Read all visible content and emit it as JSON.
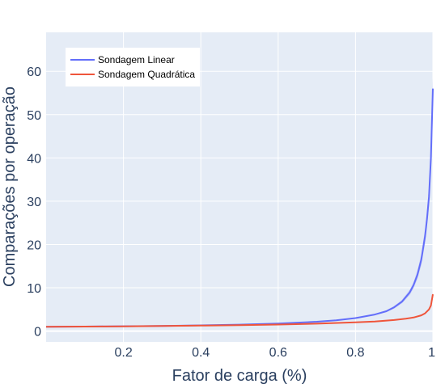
{
  "chart_data": {
    "type": "line",
    "title": "",
    "xlabel": "Fator de carga (%)",
    "ylabel": "Comparações por operação",
    "xlim": [
      0,
      1
    ],
    "ylim": [
      -2.5,
      69
    ],
    "x_ticks": [
      0.2,
      0.4,
      0.6,
      0.8,
      1
    ],
    "x_tick_labels": [
      "0.2",
      "0.4",
      "0.6",
      "0.8",
      "1"
    ],
    "y_ticks": [
      0,
      10,
      20,
      30,
      40,
      50,
      60
    ],
    "y_tick_labels": [
      "0",
      "10",
      "20",
      "30",
      "40",
      "50",
      "60"
    ],
    "grid": true,
    "legend": "top-left",
    "plot_background": "#e5ecf6",
    "series": [
      {
        "name": "Sondagem Linear",
        "color": "#636efa",
        "x": [
          0,
          0.1,
          0.2,
          0.3,
          0.4,
          0.5,
          0.6,
          0.7,
          0.75,
          0.8,
          0.85,
          0.88,
          0.9,
          0.92,
          0.94,
          0.95,
          0.96,
          0.97,
          0.98,
          0.985,
          0.99,
          0.995,
          1.0
        ],
        "values": [
          1.0,
          1.05,
          1.12,
          1.2,
          1.33,
          1.5,
          1.75,
          2.17,
          2.5,
          3.0,
          3.83,
          4.6,
          5.5,
          6.8,
          8.9,
          10.6,
          13.0,
          16.5,
          22.0,
          26.0,
          31.0,
          40.0,
          56.0
        ],
        "band_lower": [
          1.0,
          1.05,
          1.12,
          1.2,
          1.33,
          1.5,
          1.72,
          2.12,
          2.42,
          2.9,
          3.68,
          4.4,
          5.2,
          6.4,
          8.3,
          9.9,
          12.0,
          15.2,
          20.3,
          24.0,
          28.8,
          37.5,
          53.5
        ],
        "band_upper": [
          1.0,
          1.05,
          1.12,
          1.2,
          1.33,
          1.5,
          1.78,
          2.22,
          2.58,
          3.1,
          3.98,
          4.8,
          5.8,
          7.2,
          9.5,
          11.3,
          14.0,
          17.8,
          23.7,
          28.0,
          33.2,
          42.5,
          58.5
        ]
      },
      {
        "name": "Sondagem Quadrática",
        "color": "#ef553b",
        "x": [
          0,
          0.1,
          0.2,
          0.3,
          0.4,
          0.5,
          0.6,
          0.7,
          0.8,
          0.85,
          0.9,
          0.93,
          0.95,
          0.97,
          0.98,
          0.99,
          0.995,
          1.0
        ],
        "values": [
          1.0,
          1.05,
          1.11,
          1.18,
          1.27,
          1.38,
          1.52,
          1.72,
          2.01,
          2.23,
          2.56,
          2.86,
          3.14,
          3.65,
          4.1,
          5.0,
          5.9,
          8.5
        ],
        "band_lower": [
          1.0,
          1.05,
          1.11,
          1.18,
          1.27,
          1.38,
          1.52,
          1.72,
          2.0,
          2.2,
          2.52,
          2.8,
          3.06,
          3.52,
          3.95,
          4.78,
          5.6,
          8.0
        ],
        "band_upper": [
          1.0,
          1.05,
          1.11,
          1.18,
          1.27,
          1.38,
          1.52,
          1.72,
          2.02,
          2.26,
          2.6,
          2.92,
          3.22,
          3.78,
          4.25,
          5.22,
          6.2,
          9.0
        ]
      }
    ]
  }
}
